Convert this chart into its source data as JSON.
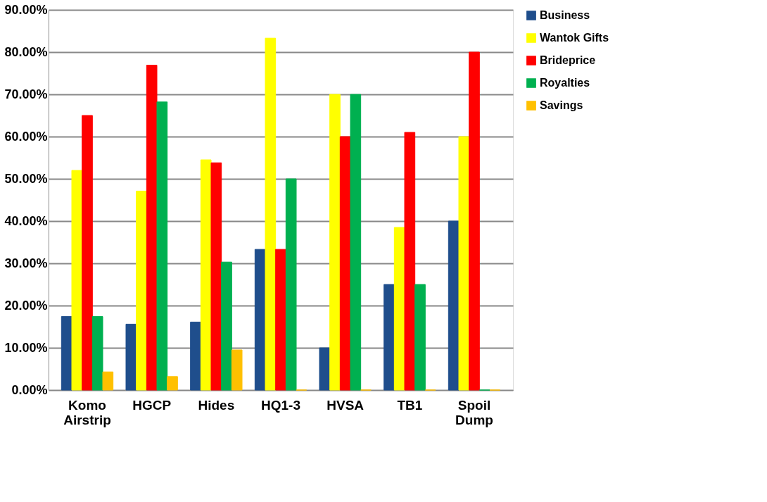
{
  "chart_data": {
    "type": "bar",
    "categories": [
      "Komo Airstrip",
      "HGCP",
      "Hides",
      "HQ1-3",
      "HVSA",
      "TB1",
      "Spoil Dump"
    ],
    "series": [
      {
        "name": "Business",
        "color": "#1f4e8c",
        "values": [
          17.4,
          15.6,
          16.1,
          33.3,
          10,
          25,
          40
        ]
      },
      {
        "name": "Wantok Gifts",
        "color": "#ffff00",
        "values": [
          52,
          47.1,
          54.5,
          83.3,
          70,
          38.5,
          60
        ]
      },
      {
        "name": "Brideprice",
        "color": "#ff0000",
        "values": [
          65,
          76.9,
          53.8,
          33.3,
          60,
          61,
          80
        ]
      },
      {
        "name": "Royalties",
        "color": "#00b050",
        "values": [
          17.4,
          68.2,
          30.3,
          50,
          70,
          25,
          0
        ]
      },
      {
        "name": "Savings",
        "color": "#ffc000",
        "values": [
          4.3,
          3.2,
          9.5,
          0,
          0,
          0,
          0
        ]
      }
    ],
    "ylim": [
      0,
      90
    ],
    "yticks": [
      {
        "value": 0,
        "label": "0.00%"
      },
      {
        "value": 10,
        "label": "10.00%"
      },
      {
        "value": 20,
        "label": "20.00%"
      },
      {
        "value": 30,
        "label": "30.00%"
      },
      {
        "value": 40,
        "label": "40.00%"
      },
      {
        "value": 50,
        "label": "50.00%"
      },
      {
        "value": 60,
        "label": "60.00%"
      },
      {
        "value": 70,
        "label": "70.00%"
      },
      {
        "value": 80,
        "label": "80.00%"
      },
      {
        "value": 90,
        "label": "90.00%"
      }
    ],
    "grid": "y",
    "legend": "right"
  }
}
